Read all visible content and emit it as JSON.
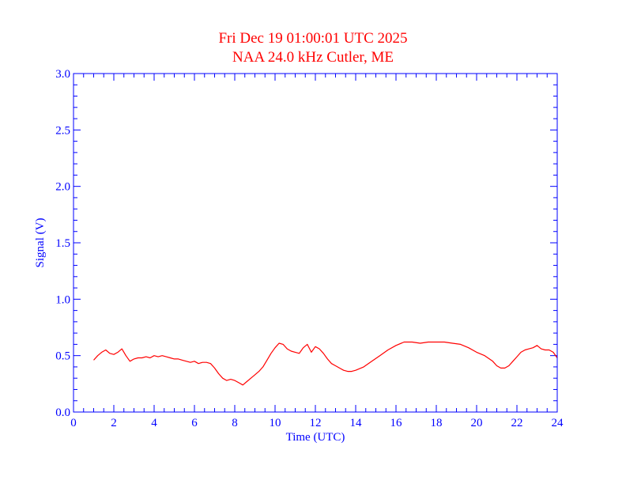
{
  "chart_data": {
    "type": "line",
    "title": "Fri Dec 19 01:00:01 UTC 2025",
    "subtitle": "NAA 24.0 kHz Cutler, ME",
    "xlabel": "Time (UTC)",
    "ylabel": "Signal (V)",
    "xlim": [
      0,
      24
    ],
    "ylim": [
      0.0,
      3.0
    ],
    "x_ticks": [
      "0",
      "2",
      "4",
      "6",
      "8",
      "10",
      "12",
      "14",
      "16",
      "18",
      "20",
      "22",
      "24"
    ],
    "y_ticks": [
      "0.0",
      "0.5",
      "1.0",
      "1.5",
      "2.0",
      "2.5",
      "3.0"
    ],
    "grid": false,
    "colors": {
      "title": "#ff0000",
      "axes": "#0000ff",
      "series": "#ff0000"
    },
    "series": [
      {
        "x": [
          1.0,
          1.2,
          1.4,
          1.6,
          1.8,
          2.0,
          2.2,
          2.4,
          2.6,
          2.8,
          3.0,
          3.2,
          3.4,
          3.6,
          3.8,
          4.0,
          4.2,
          4.4,
          4.6,
          4.8,
          5.0,
          5.2,
          5.4,
          5.6,
          5.8,
          6.0,
          6.2,
          6.4,
          6.6,
          6.8,
          7.0,
          7.2,
          7.4,
          7.6,
          7.8,
          8.0,
          8.2,
          8.4,
          8.6,
          8.8,
          9.0,
          9.2,
          9.4,
          9.6,
          9.8,
          10.0,
          10.2,
          10.4,
          10.6,
          10.8,
          11.0,
          11.2,
          11.4,
          11.6,
          11.8,
          12.0,
          12.2,
          12.4,
          12.6,
          12.8,
          13.0,
          13.2,
          13.4,
          13.6,
          13.8,
          14.0,
          14.4,
          14.8,
          15.2,
          15.6,
          16.0,
          16.4,
          16.8,
          17.2,
          17.6,
          18.0,
          18.4,
          18.8,
          19.2,
          19.6,
          20.0,
          20.4,
          20.8,
          21.0,
          21.2,
          21.4,
          21.6,
          21.8,
          22.0,
          22.2,
          22.4,
          22.6,
          22.8,
          23.0,
          23.2,
          23.4,
          23.6,
          23.8,
          24.0
        ],
        "y": [
          0.46,
          0.5,
          0.53,
          0.55,
          0.52,
          0.51,
          0.53,
          0.56,
          0.5,
          0.45,
          0.47,
          0.48,
          0.48,
          0.49,
          0.48,
          0.5,
          0.49,
          0.5,
          0.49,
          0.48,
          0.47,
          0.47,
          0.46,
          0.45,
          0.44,
          0.45,
          0.43,
          0.44,
          0.44,
          0.43,
          0.39,
          0.34,
          0.3,
          0.28,
          0.29,
          0.28,
          0.26,
          0.24,
          0.27,
          0.3,
          0.33,
          0.36,
          0.4,
          0.46,
          0.52,
          0.57,
          0.61,
          0.6,
          0.56,
          0.54,
          0.53,
          0.52,
          0.57,
          0.6,
          0.53,
          0.58,
          0.56,
          0.52,
          0.47,
          0.43,
          0.41,
          0.39,
          0.37,
          0.36,
          0.36,
          0.37,
          0.4,
          0.45,
          0.5,
          0.55,
          0.59,
          0.62,
          0.62,
          0.61,
          0.62,
          0.62,
          0.62,
          0.61,
          0.6,
          0.57,
          0.53,
          0.5,
          0.45,
          0.41,
          0.39,
          0.39,
          0.41,
          0.45,
          0.49,
          0.53,
          0.55,
          0.56,
          0.57,
          0.59,
          0.56,
          0.55,
          0.55,
          0.53,
          0.48
        ]
      }
    ]
  }
}
